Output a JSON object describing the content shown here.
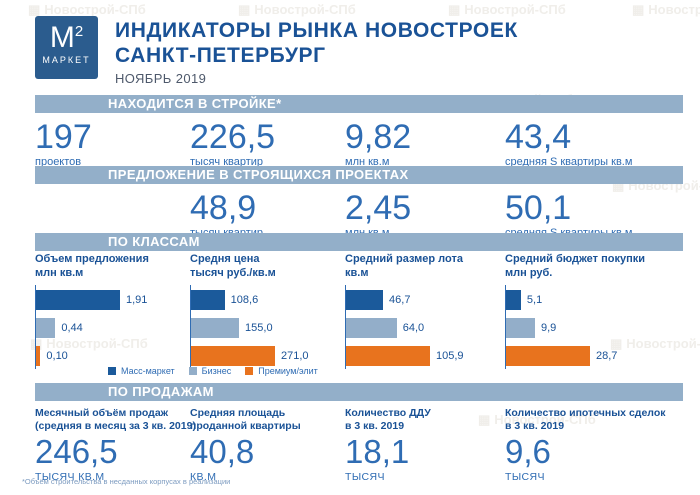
{
  "header": {
    "logo_m": "М",
    "logo_sup": "2",
    "logo_market": "МАРКЕТ",
    "title_line1": "ИНДИКАТОРЫ РЫНКА НОВОСТРОЕК",
    "title_line2": "САНКТ-ПЕТЕРБУРГ",
    "subtitle": "НОЯБРЬ 2019"
  },
  "colors": {
    "band": "#93AFC9",
    "logo_bg": "#2B5C8E",
    "mass_market": "#1B5A9B",
    "business": "#93AEC9",
    "premium": "#E8731E",
    "number_blue": "#2F6CB3",
    "title_blue": "#1A5296"
  },
  "construction": {
    "band_label": "НАХОДИТСЯ В СТРОЙКЕ*",
    "stats": [
      {
        "value": "197",
        "label": "проектов"
      },
      {
        "value": "226,5",
        "label": "тысяч квартир"
      },
      {
        "value": "9,82",
        "label": "млн кв.м"
      },
      {
        "value": "43,4",
        "label": "средняя S квартиры кв.м"
      }
    ]
  },
  "offer": {
    "band_label": "ПРЕДЛОЖЕНИЕ В СТРОЯЩИХСЯ ПРОЕКТАХ",
    "stats": [
      {
        "value": "48,9",
        "label": "тысяч квартир"
      },
      {
        "value": "2,45",
        "label": "млн кв.м"
      },
      {
        "value": "50,1",
        "label": "средняя S квартиры кв.м"
      }
    ]
  },
  "by_class": {
    "band_label": "ПО КЛАССАМ",
    "legend": [
      {
        "label": "Масс-маркет",
        "color": "#1B5A9B"
      },
      {
        "label": "Бизнес",
        "color": "#93AEC9"
      },
      {
        "label": "Премиум/элит",
        "color": "#E8731E"
      }
    ]
  },
  "chart_data": [
    {
      "type": "bar",
      "orientation": "horizontal",
      "title": "Объем предложения",
      "unit": "млн кв.м",
      "categories": [
        "Масс-маркет",
        "Бизнес",
        "Премиум/элит"
      ],
      "values": [
        1.91,
        0.44,
        0.1
      ],
      "value_labels": [
        "1,91",
        "0,44",
        "0,10"
      ],
      "legend_position": "bottom",
      "grid": false
    },
    {
      "type": "bar",
      "orientation": "horizontal",
      "title": "Средня цена",
      "unit": "тысяч руб./кв.м",
      "categories": [
        "Масс-маркет",
        "Бизнес",
        "Премиум/элит"
      ],
      "values": [
        108.6,
        155.0,
        271.0
      ],
      "value_labels": [
        "108,6",
        "155,0",
        "271,0"
      ],
      "legend_position": "bottom",
      "grid": false
    },
    {
      "type": "bar",
      "orientation": "horizontal",
      "title": "Средний размер лота",
      "unit": "кв.м",
      "categories": [
        "Масс-маркет",
        "Бизнес",
        "Премиум/элит"
      ],
      "values": [
        46.7,
        64.0,
        105.9
      ],
      "value_labels": [
        "46,7",
        "64,0",
        "105,9"
      ],
      "legend_position": "bottom",
      "grid": false
    },
    {
      "type": "bar",
      "orientation": "horizontal",
      "title": "Средний бюджет покупки",
      "unit": "млн руб.",
      "categories": [
        "Масс-маркет",
        "Бизнес",
        "Премиум/элит"
      ],
      "values": [
        5.1,
        9.9,
        28.7
      ],
      "value_labels": [
        "5,1",
        "9,9",
        "28,7"
      ],
      "legend_position": "bottom",
      "grid": false
    }
  ],
  "sales": {
    "band_label": "ПО ПРОДАЖАМ",
    "stats": [
      {
        "label_line1": "Месячный объём продаж",
        "label_line2": "(средняя в месяц за 3 кв. 2019)",
        "value": "246,5",
        "unit": "ТЫСЯЧ КВ.М"
      },
      {
        "label_line1": "Средняя площадь",
        "label_line2": "проданной квартиры",
        "value": "40,8",
        "unit": "КВ.М"
      },
      {
        "label_line1": "Количество ДДУ",
        "label_line2": "в 3 кв. 2019",
        "value": "18,1",
        "unit": "ТЫСЯЧ"
      },
      {
        "label_line1": "Количество ипотечных сделок",
        "label_line2": "в 3 кв. 2019",
        "value": "9,6",
        "unit": "ТЫСЯЧ"
      }
    ]
  },
  "footnote": "*Объём строительства в несданных корпусах в реализации",
  "watermark": {
    "text": "Новострой-СПб",
    "icon": "▦"
  }
}
